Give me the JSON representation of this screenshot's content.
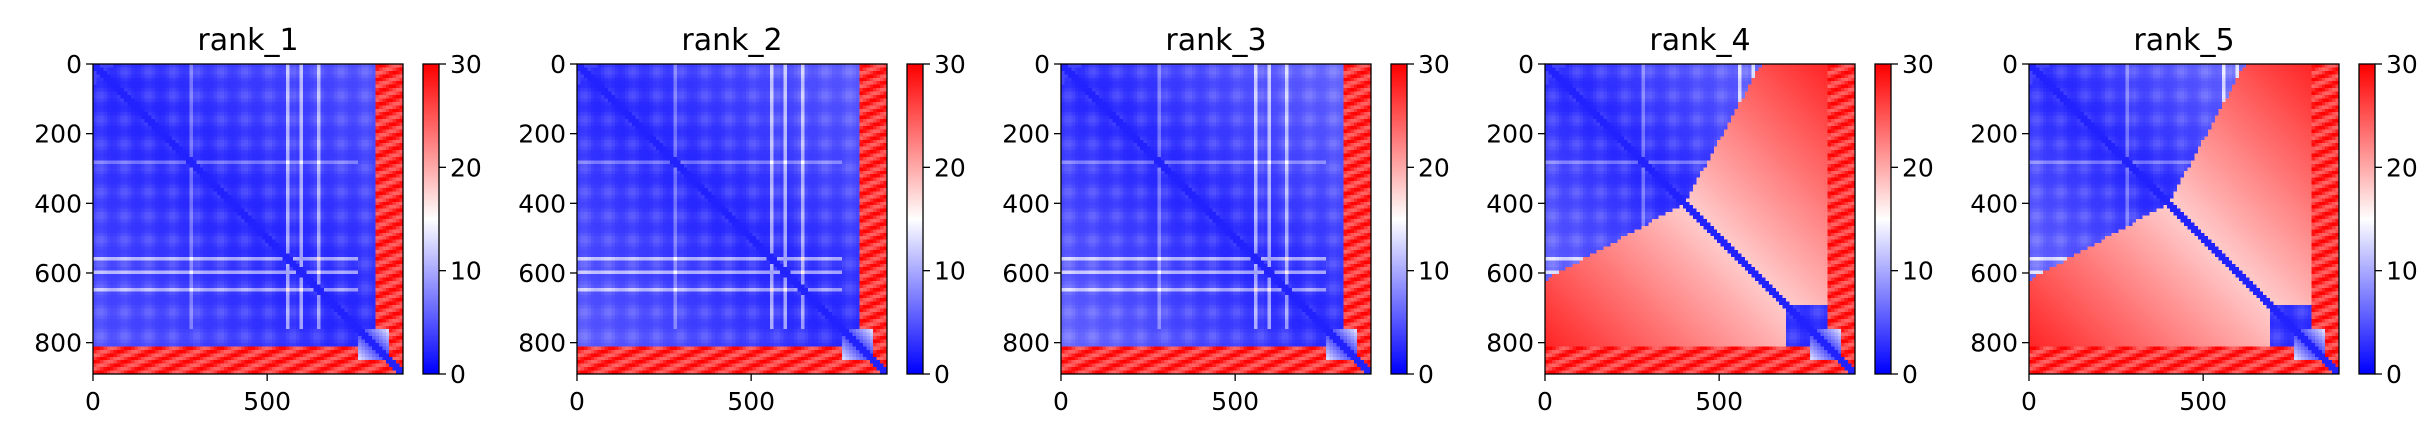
{
  "chart_data": [
    {
      "type": "heatmap",
      "title": "rank_1",
      "colorscale": "bwr",
      "value_range": [
        0,
        30
      ],
      "x_ticks": [
        0,
        500
      ],
      "y_ticks": [
        0,
        200,
        400,
        600,
        800
      ],
      "colorbar_ticks": [
        0,
        10,
        20,
        30
      ],
      "matrix_size": [
        890,
        890
      ],
      "xlim": [
        0,
        890
      ],
      "ylim": [
        890,
        0
      ]
    },
    {
      "type": "heatmap",
      "title": "rank_2",
      "colorscale": "bwr",
      "value_range": [
        0,
        30
      ],
      "x_ticks": [
        0,
        500
      ],
      "y_ticks": [
        0,
        200,
        400,
        600,
        800
      ],
      "colorbar_ticks": [
        0,
        10,
        20,
        30
      ],
      "matrix_size": [
        890,
        890
      ],
      "xlim": [
        0,
        890
      ],
      "ylim": [
        890,
        0
      ]
    },
    {
      "type": "heatmap",
      "title": "rank_3",
      "colorscale": "bwr",
      "value_range": [
        0,
        30
      ],
      "x_ticks": [
        0,
        500
      ],
      "y_ticks": [
        0,
        200,
        400,
        600,
        800
      ],
      "colorbar_ticks": [
        0,
        10,
        20,
        30
      ],
      "matrix_size": [
        890,
        890
      ],
      "xlim": [
        0,
        890
      ],
      "ylim": [
        890,
        0
      ]
    },
    {
      "type": "heatmap",
      "title": "rank_4",
      "colorscale": "bwr",
      "value_range": [
        0,
        30
      ],
      "x_ticks": [
        0,
        500
      ],
      "y_ticks": [
        0,
        200,
        400,
        600,
        800
      ],
      "colorbar_ticks": [
        0,
        10,
        20,
        30
      ],
      "matrix_size": [
        890,
        890
      ],
      "xlim": [
        0,
        890
      ],
      "ylim": [
        890,
        0
      ]
    },
    {
      "type": "heatmap",
      "title": "rank_5",
      "colorscale": "bwr",
      "value_range": [
        0,
        30
      ],
      "x_ticks": [
        0,
        500
      ],
      "y_ticks": [
        0,
        200,
        400,
        600,
        800
      ],
      "colorbar_ticks": [
        0,
        10,
        20,
        30
      ],
      "matrix_size": [
        890,
        890
      ],
      "xlim": [
        0,
        890
      ],
      "ylim": [
        890,
        0
      ]
    }
  ],
  "colors": {
    "low": "#0000ff",
    "mid": "#ffffff",
    "high": "#ff0000"
  }
}
